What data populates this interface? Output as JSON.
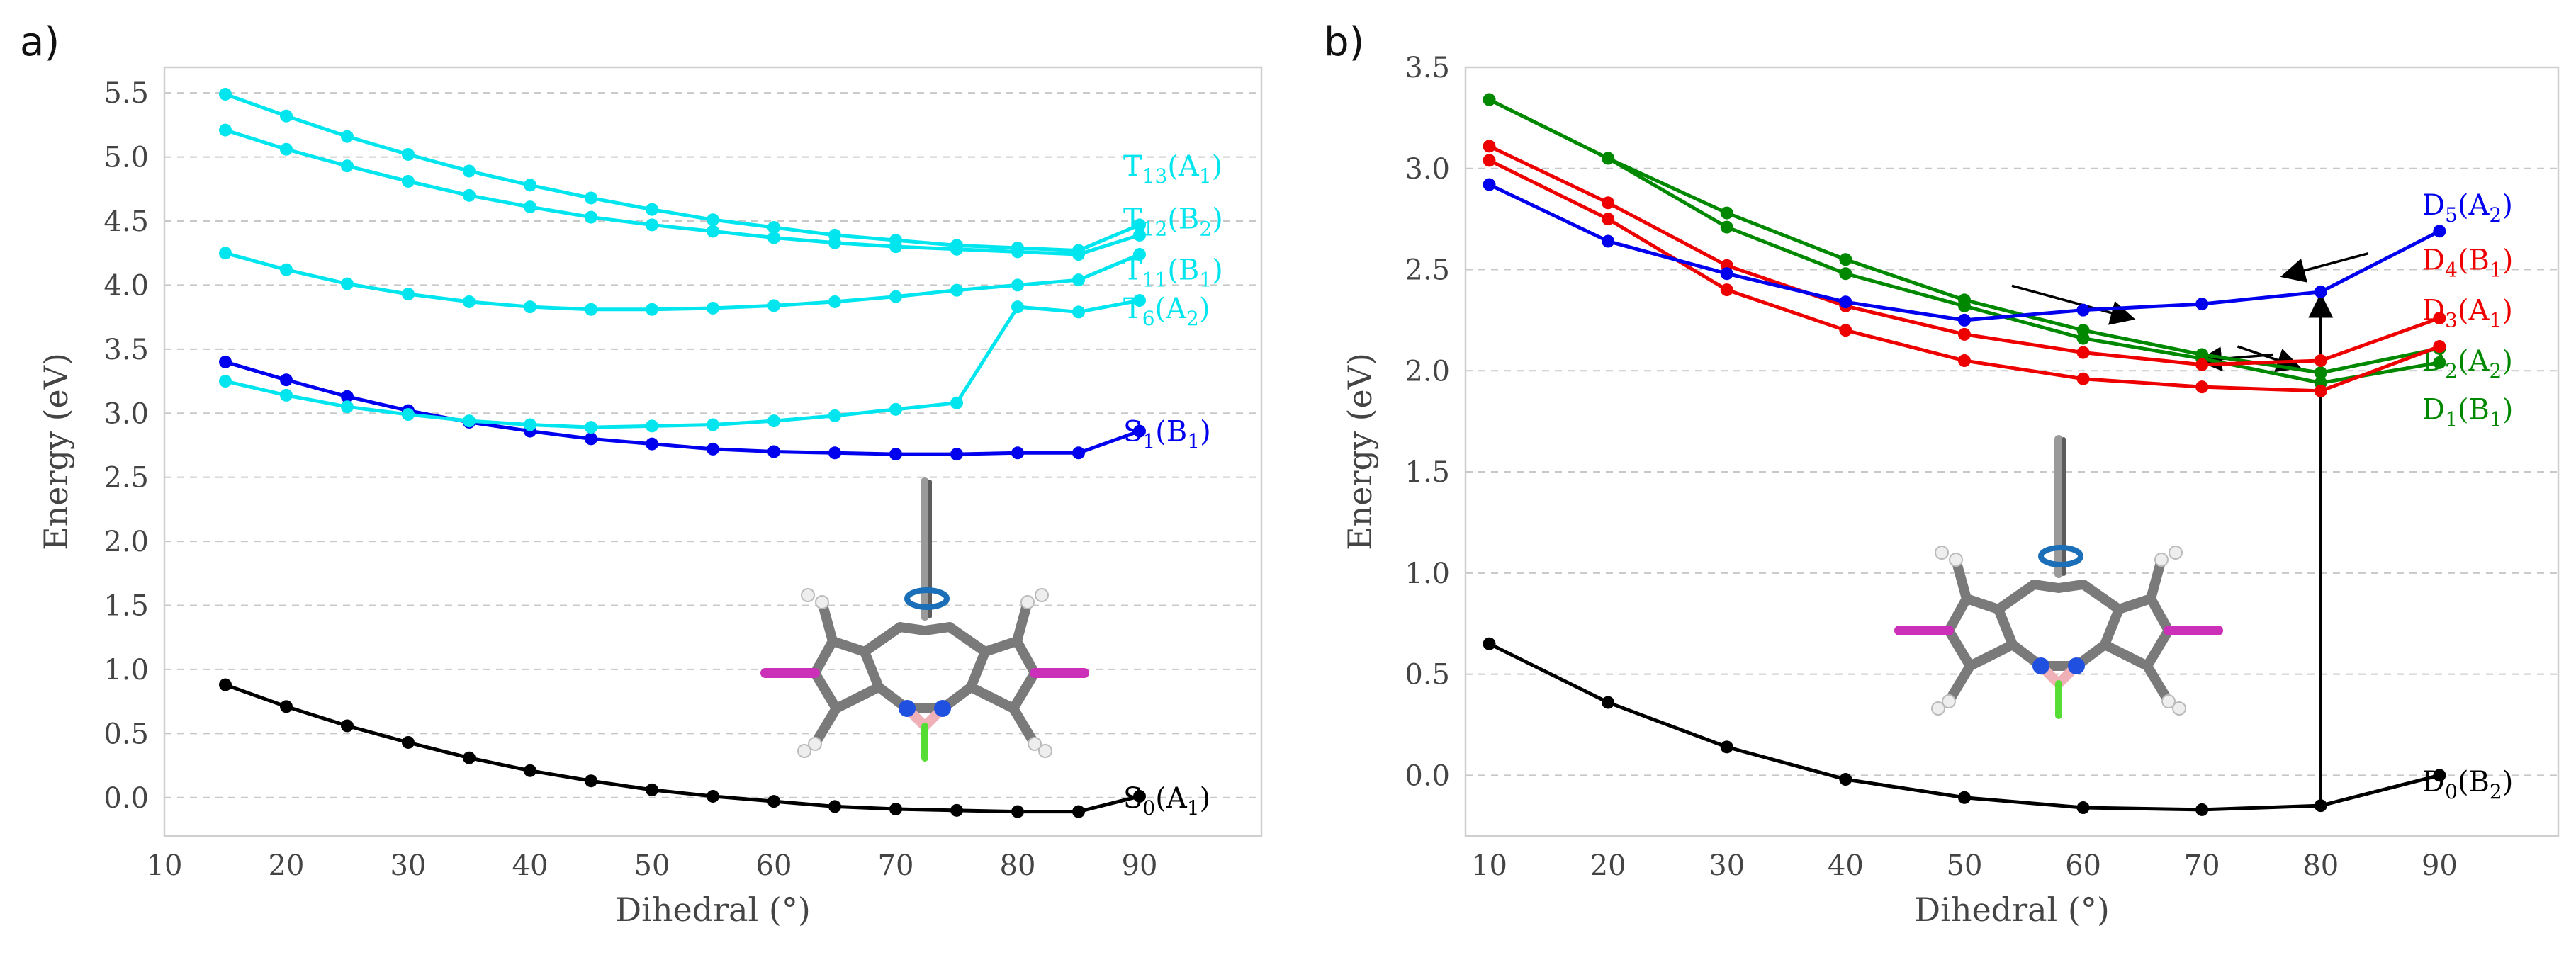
{
  "chart_data": [
    {
      "type": "line",
      "panel_label": "a)",
      "title": "",
      "xlabel": "Dihedral (°)",
      "ylabel": "Energy (eV)",
      "xlim": [
        10,
        100
      ],
      "ylim": [
        -0.3,
        5.7
      ],
      "xticks": [
        10,
        20,
        30,
        40,
        50,
        60,
        70,
        80,
        90
      ],
      "yticks": [
        0.0,
        0.5,
        1.0,
        1.5,
        2.0,
        2.5,
        3.0,
        3.5,
        4.0,
        4.5,
        5.0,
        5.5
      ],
      "ytick_labels": [
        "0.0",
        "0.5",
        "1.0",
        "1.5",
        "2.0",
        "2.5",
        "3.0",
        "3.5",
        "4.0",
        "4.5",
        "5.0",
        "5.5"
      ],
      "grid": "horizontal dashed",
      "series": [
        {
          "name": "S0(A1)",
          "main": "S",
          "sub": "0",
          "sym": "A",
          "symsub": "1",
          "color": "#000000",
          "x": [
            15,
            20,
            25,
            30,
            35,
            40,
            45,
            50,
            55,
            60,
            65,
            70,
            75,
            80,
            85,
            90
          ],
          "y": [
            0.88,
            0.71,
            0.56,
            0.43,
            0.31,
            0.21,
            0.13,
            0.06,
            0.01,
            -0.03,
            -0.07,
            -0.09,
            -0.1,
            -0.11,
            -0.11,
            0.01
          ]
        },
        {
          "name": "S1(B1)",
          "main": "S",
          "sub": "1",
          "sym": "B",
          "symsub": "1",
          "color": "#0000ee",
          "x": [
            15,
            20,
            25,
            30,
            35,
            40,
            45,
            50,
            55,
            60,
            65,
            70,
            75,
            80,
            85,
            90
          ],
          "y": [
            3.4,
            3.26,
            3.13,
            3.02,
            2.93,
            2.86,
            2.8,
            2.76,
            2.72,
            2.7,
            2.69,
            2.68,
            2.68,
            2.69,
            2.69,
            2.86
          ]
        },
        {
          "name": "T6(A2)",
          "main": "T",
          "sub": "6",
          "sym": "A",
          "symsub": "2",
          "color": "#00e5ee",
          "x": [
            15,
            20,
            25,
            30,
            35,
            40,
            45,
            50,
            55,
            60,
            65,
            70,
            75,
            80,
            85,
            90
          ],
          "y": [
            3.25,
            3.14,
            3.05,
            2.99,
            2.94,
            2.91,
            2.89,
            2.9,
            2.91,
            2.94,
            2.98,
            3.03,
            3.08,
            3.83,
            3.79,
            3.88
          ]
        },
        {
          "name": "T11(B1)",
          "main": "T",
          "sub": "11",
          "sym": "B",
          "symsub": "1",
          "color": "#00e5ee",
          "x": [
            15,
            20,
            25,
            30,
            35,
            40,
            45,
            50,
            55,
            60,
            65,
            70,
            75,
            80,
            85,
            90
          ],
          "y": [
            4.25,
            4.12,
            4.01,
            3.93,
            3.87,
            3.83,
            3.81,
            3.81,
            3.82,
            3.84,
            3.87,
            3.91,
            3.96,
            4.0,
            4.04,
            4.24
          ]
        },
        {
          "name": "T12(B2)",
          "main": "T",
          "sub": "12",
          "sym": "B",
          "symsub": "2",
          "color": "#00e5ee",
          "x": [
            15,
            20,
            25,
            30,
            35,
            40,
            45,
            50,
            55,
            60,
            65,
            70,
            75,
            80,
            85,
            90
          ],
          "y": [
            5.21,
            5.06,
            4.93,
            4.81,
            4.7,
            4.61,
            4.53,
            4.47,
            4.42,
            4.37,
            4.33,
            4.3,
            4.28,
            4.26,
            4.24,
            4.39
          ]
        },
        {
          "name": "T13(A1)",
          "main": "T",
          "sub": "13",
          "sym": "A",
          "symsub": "1",
          "color": "#00e5ee",
          "x": [
            15,
            20,
            25,
            30,
            35,
            40,
            45,
            50,
            55,
            60,
            65,
            70,
            75,
            80,
            85,
            90
          ],
          "y": [
            5.49,
            5.32,
            5.16,
            5.02,
            4.89,
            4.78,
            4.68,
            4.59,
            4.51,
            4.45,
            4.39,
            4.35,
            4.31,
            4.29,
            4.27,
            4.47
          ]
        }
      ],
      "annotations": [
        "inset: molecular structure with rotation arrow"
      ]
    },
    {
      "type": "line",
      "panel_label": "b)",
      "title": "",
      "xlabel": "Dihedral (°)",
      "ylabel": "Energy (eV)",
      "xlim": [
        8,
        100
      ],
      "ylim": [
        -0.3,
        3.5
      ],
      "xticks": [
        10,
        20,
        30,
        40,
        50,
        60,
        70,
        80,
        90
      ],
      "yticks": [
        0.0,
        0.5,
        1.0,
        1.5,
        2.0,
        2.5,
        3.0,
        3.5
      ],
      "ytick_labels": [
        "0.0",
        "0.5",
        "1.0",
        "1.5",
        "2.0",
        "2.5",
        "3.0",
        "3.5"
      ],
      "grid": "horizontal dashed",
      "series": [
        {
          "name": "D0(B2)",
          "main": "D",
          "sub": "0",
          "sym": "B",
          "symsub": "2",
          "color": "#000000",
          "x": [
            10,
            20,
            30,
            40,
            50,
            60,
            70,
            80,
            90
          ],
          "y": [
            0.65,
            0.36,
            0.14,
            -0.02,
            -0.11,
            -0.16,
            -0.17,
            -0.15,
            0.0
          ]
        },
        {
          "name": "D1(B1)",
          "main": "D",
          "sub": "1",
          "sym": "B",
          "symsub": "1",
          "color": "#008800",
          "x": [
            10,
            20,
            30,
            40,
            50,
            60,
            70,
            80,
            90
          ],
          "y": [
            3.34,
            3.05,
            2.71,
            2.48,
            2.32,
            2.16,
            2.06,
            1.94,
            2.04
          ]
        },
        {
          "name": "D2(A2)",
          "main": "D",
          "sub": "2",
          "sym": "A",
          "symsub": "2",
          "color": "#008800",
          "x": [
            10,
            20,
            30,
            40,
            50,
            60,
            70,
            80,
            90
          ],
          "y": [
            3.34,
            3.05,
            2.78,
            2.55,
            2.35,
            2.2,
            2.08,
            1.99,
            2.11
          ]
        },
        {
          "name": "D3(A1)",
          "main": "D",
          "sub": "3",
          "sym": "A",
          "symsub": "1",
          "color": "#ee0000",
          "x": [
            10,
            20,
            30,
            40,
            50,
            60,
            70,
            80,
            90
          ],
          "y": [
            3.04,
            2.75,
            2.4,
            2.2,
            2.05,
            1.96,
            1.92,
            1.9,
            2.12
          ]
        },
        {
          "name": "D4(B1)",
          "main": "D",
          "sub": "4",
          "sym": "B",
          "symsub": "1",
          "color": "#ee0000",
          "x": [
            10,
            20,
            30,
            40,
            50,
            60,
            70,
            80,
            90
          ],
          "y": [
            3.11,
            2.83,
            2.52,
            2.32,
            2.18,
            2.09,
            2.03,
            2.05,
            2.26
          ]
        },
        {
          "name": "D5(A2)",
          "main": "D",
          "sub": "5",
          "sym": "A",
          "symsub": "2",
          "color": "#0000ee",
          "x": [
            10,
            20,
            30,
            40,
            50,
            60,
            70,
            80,
            90
          ],
          "y": [
            2.92,
            2.64,
            2.48,
            2.34,
            2.25,
            2.3,
            2.33,
            2.39,
            2.69
          ]
        }
      ],
      "annotations": [
        "vertical arrow at 80° from D0 to D5",
        "small arrows indicating state crossings",
        "inset: molecular structure with rotation arrow"
      ]
    }
  ]
}
